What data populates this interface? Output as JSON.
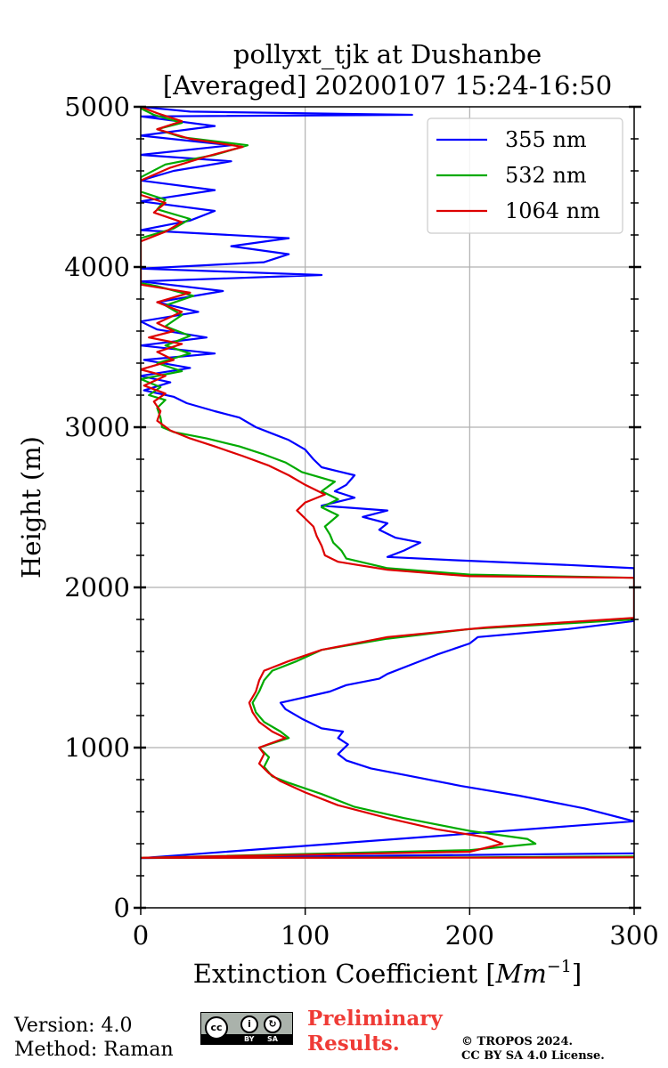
{
  "chart_data": {
    "type": "line",
    "title": [
      "pollyxt_tjk at Dushanbe",
      "[Averaged] 20200107 15:24-16:50"
    ],
    "xlabel": "Extinction Coefficient [Mm⁻¹]",
    "xlabel_parts": {
      "main": "Extinction Coefficient [",
      "unit": "Mm",
      "exp": "−1",
      "close": "]"
    },
    "ylabel": "Height (m)",
    "xlim": [
      0,
      300
    ],
    "ylim": [
      0,
      5000
    ],
    "xticks": [
      0,
      100,
      200,
      300
    ],
    "yticks": [
      0,
      1000,
      2000,
      3000,
      4000,
      5000
    ],
    "grid": true,
    "legend_position": "top-right",
    "series": [
      {
        "name": "355 nm",
        "color": "#0000ff",
        "points": [
          [
            300,
            340
          ],
          [
            200,
            330
          ],
          [
            0,
            310
          ],
          [
            300,
            540
          ],
          [
            270,
            620
          ],
          [
            230,
            700
          ],
          [
            195,
            760
          ],
          [
            160,
            830
          ],
          [
            140,
            870
          ],
          [
            125,
            920
          ],
          [
            120,
            960
          ],
          [
            126,
            1020
          ],
          [
            120,
            1060
          ],
          [
            123,
            1100
          ],
          [
            110,
            1120
          ],
          [
            98,
            1180
          ],
          [
            88,
            1240
          ],
          [
            85,
            1280
          ],
          [
            98,
            1310
          ],
          [
            115,
            1350
          ],
          [
            125,
            1390
          ],
          [
            145,
            1430
          ],
          [
            150,
            1460
          ],
          [
            165,
            1520
          ],
          [
            180,
            1580
          ],
          [
            200,
            1650
          ],
          [
            205,
            1690
          ],
          [
            260,
            1740
          ],
          [
            300,
            1790
          ],
          [
            300,
            2120
          ],
          [
            260,
            2140
          ],
          [
            190,
            2170
          ],
          [
            150,
            2190
          ],
          [
            160,
            2230
          ],
          [
            170,
            2280
          ],
          [
            155,
            2310
          ],
          [
            145,
            2360
          ],
          [
            150,
            2400
          ],
          [
            135,
            2440
          ],
          [
            150,
            2480
          ],
          [
            110,
            2510
          ],
          [
            130,
            2560
          ],
          [
            118,
            2600
          ],
          [
            125,
            2640
          ],
          [
            130,
            2700
          ],
          [
            110,
            2750
          ],
          [
            105,
            2800
          ],
          [
            100,
            2860
          ],
          [
            90,
            2920
          ],
          [
            80,
            2960
          ],
          [
            70,
            3000
          ],
          [
            60,
            3060
          ],
          [
            45,
            3100
          ],
          [
            28,
            3150
          ],
          [
            20,
            3190
          ],
          [
            2,
            3230
          ],
          [
            18,
            3280
          ],
          [
            0,
            3320
          ],
          [
            30,
            3370
          ],
          [
            2,
            3420
          ],
          [
            45,
            3460
          ],
          [
            0,
            3510
          ],
          [
            40,
            3560
          ],
          [
            10,
            3610
          ],
          [
            0,
            3660
          ],
          [
            35,
            3720
          ],
          [
            10,
            3780
          ],
          [
            50,
            3850
          ],
          [
            0,
            3910
          ],
          [
            110,
            3950
          ],
          [
            0,
            3990
          ],
          [
            75,
            4030
          ],
          [
            90,
            4080
          ],
          [
            55,
            4130
          ],
          [
            90,
            4180
          ],
          [
            0,
            4230
          ],
          [
            30,
            4290
          ],
          [
            45,
            4350
          ],
          [
            0,
            4410
          ],
          [
            45,
            4480
          ],
          [
            0,
            4540
          ],
          [
            20,
            4600
          ],
          [
            55,
            4660
          ],
          [
            0,
            4700
          ],
          [
            55,
            4760
          ],
          [
            0,
            4820
          ],
          [
            45,
            4880
          ],
          [
            0,
            4940
          ],
          [
            165,
            4950
          ],
          [
            30,
            4970
          ],
          [
            0,
            5000
          ]
        ]
      },
      {
        "name": "532 nm",
        "color": "#00aa00",
        "points": [
          [
            300,
            320
          ],
          [
            200,
            315
          ],
          [
            0,
            312
          ],
          [
            200,
            360
          ],
          [
            240,
            400
          ],
          [
            235,
            430
          ],
          [
            200,
            480
          ],
          [
            160,
            560
          ],
          [
            130,
            630
          ],
          [
            110,
            710
          ],
          [
            90,
            780
          ],
          [
            80,
            820
          ],
          [
            75,
            880
          ],
          [
            78,
            940
          ],
          [
            72,
            1000
          ],
          [
            90,
            1060
          ],
          [
            85,
            1100
          ],
          [
            75,
            1160
          ],
          [
            70,
            1220
          ],
          [
            68,
            1280
          ],
          [
            72,
            1350
          ],
          [
            75,
            1420
          ],
          [
            80,
            1480
          ],
          [
            95,
            1540
          ],
          [
            110,
            1610
          ],
          [
            150,
            1680
          ],
          [
            200,
            1740
          ],
          [
            300,
            1800
          ],
          [
            300,
            2060
          ],
          [
            200,
            2080
          ],
          [
            150,
            2120
          ],
          [
            125,
            2180
          ],
          [
            122,
            2230
          ],
          [
            117,
            2280
          ],
          [
            115,
            2330
          ],
          [
            112,
            2380
          ],
          [
            120,
            2450
          ],
          [
            110,
            2500
          ],
          [
            120,
            2550
          ],
          [
            110,
            2600
          ],
          [
            118,
            2660
          ],
          [
            98,
            2720
          ],
          [
            88,
            2780
          ],
          [
            75,
            2830
          ],
          [
            60,
            2880
          ],
          [
            40,
            2930
          ],
          [
            20,
            2970
          ],
          [
            13,
            3000
          ],
          [
            12,
            3060
          ],
          [
            10,
            3120
          ],
          [
            15,
            3170
          ],
          [
            5,
            3200
          ],
          [
            12,
            3250
          ],
          [
            0,
            3300
          ],
          [
            25,
            3350
          ],
          [
            10,
            3400
          ],
          [
            30,
            3460
          ],
          [
            15,
            3510
          ],
          [
            30,
            3570
          ],
          [
            15,
            3630
          ],
          [
            25,
            3700
          ],
          [
            15,
            3760
          ],
          [
            32,
            3820
          ],
          [
            10,
            3880
          ],
          [
            0,
            3900
          ],
          [
            0,
            4180
          ],
          [
            20,
            4240
          ],
          [
            30,
            4300
          ],
          [
            10,
            4360
          ],
          [
            15,
            4420
          ],
          [
            0,
            4470
          ],
          [
            0,
            4560
          ],
          [
            15,
            4640
          ],
          [
            45,
            4700
          ],
          [
            65,
            4760
          ],
          [
            25,
            4810
          ],
          [
            10,
            4860
          ],
          [
            25,
            4900
          ],
          [
            8,
            4950
          ],
          [
            0,
            4990
          ]
        ]
      },
      {
        "name": "1064 nm",
        "color": "#dd0000",
        "points": [
          [
            300,
            315
          ],
          [
            200,
            313
          ],
          [
            0,
            312
          ],
          [
            200,
            350
          ],
          [
            220,
            400
          ],
          [
            210,
            440
          ],
          [
            180,
            490
          ],
          [
            150,
            560
          ],
          [
            120,
            640
          ],
          [
            100,
            720
          ],
          [
            85,
            790
          ],
          [
            78,
            840
          ],
          [
            72,
            900
          ],
          [
            75,
            960
          ],
          [
            72,
            1000
          ],
          [
            88,
            1060
          ],
          [
            80,
            1100
          ],
          [
            72,
            1160
          ],
          [
            68,
            1220
          ],
          [
            66,
            1280
          ],
          [
            70,
            1350
          ],
          [
            72,
            1420
          ],
          [
            75,
            1480
          ],
          [
            90,
            1540
          ],
          [
            110,
            1610
          ],
          [
            150,
            1690
          ],
          [
            210,
            1750
          ],
          [
            300,
            1810
          ],
          [
            300,
            2060
          ],
          [
            200,
            2070
          ],
          [
            150,
            2110
          ],
          [
            120,
            2160
          ],
          [
            112,
            2200
          ],
          [
            110,
            2260
          ],
          [
            107,
            2320
          ],
          [
            105,
            2380
          ],
          [
            100,
            2430
          ],
          [
            95,
            2480
          ],
          [
            100,
            2530
          ],
          [
            112,
            2580
          ],
          [
            100,
            2640
          ],
          [
            90,
            2700
          ],
          [
            78,
            2760
          ],
          [
            62,
            2820
          ],
          [
            45,
            2880
          ],
          [
            30,
            2930
          ],
          [
            18,
            2980
          ],
          [
            10,
            3040
          ],
          [
            12,
            3100
          ],
          [
            8,
            3160
          ],
          [
            15,
            3210
          ],
          [
            2,
            3260
          ],
          [
            15,
            3320
          ],
          [
            0,
            3360
          ],
          [
            20,
            3420
          ],
          [
            10,
            3470
          ],
          [
            25,
            3520
          ],
          [
            5,
            3560
          ],
          [
            20,
            3600
          ],
          [
            10,
            3650
          ],
          [
            25,
            3720
          ],
          [
            10,
            3780
          ],
          [
            30,
            3840
          ],
          [
            0,
            3890
          ],
          [
            0,
            4160
          ],
          [
            15,
            4220
          ],
          [
            25,
            4280
          ],
          [
            8,
            4340
          ],
          [
            15,
            4400
          ],
          [
            0,
            4450
          ],
          [
            0,
            4540
          ],
          [
            18,
            4620
          ],
          [
            40,
            4690
          ],
          [
            62,
            4750
          ],
          [
            30,
            4800
          ],
          [
            10,
            4860
          ],
          [
            25,
            4910
          ],
          [
            10,
            4960
          ],
          [
            0,
            5000
          ]
        ]
      }
    ]
  },
  "footer": {
    "version": "Version: 4.0",
    "method": "Method: Raman",
    "cc_by": "BY",
    "cc_sa": "SA",
    "cc_mark": "cc",
    "preliminary_line1": "Preliminary",
    "preliminary_line2": "Results.",
    "copyright_line1": "© TROPOS 2024.",
    "copyright_line2": "CC BY SA 4.0 License."
  }
}
